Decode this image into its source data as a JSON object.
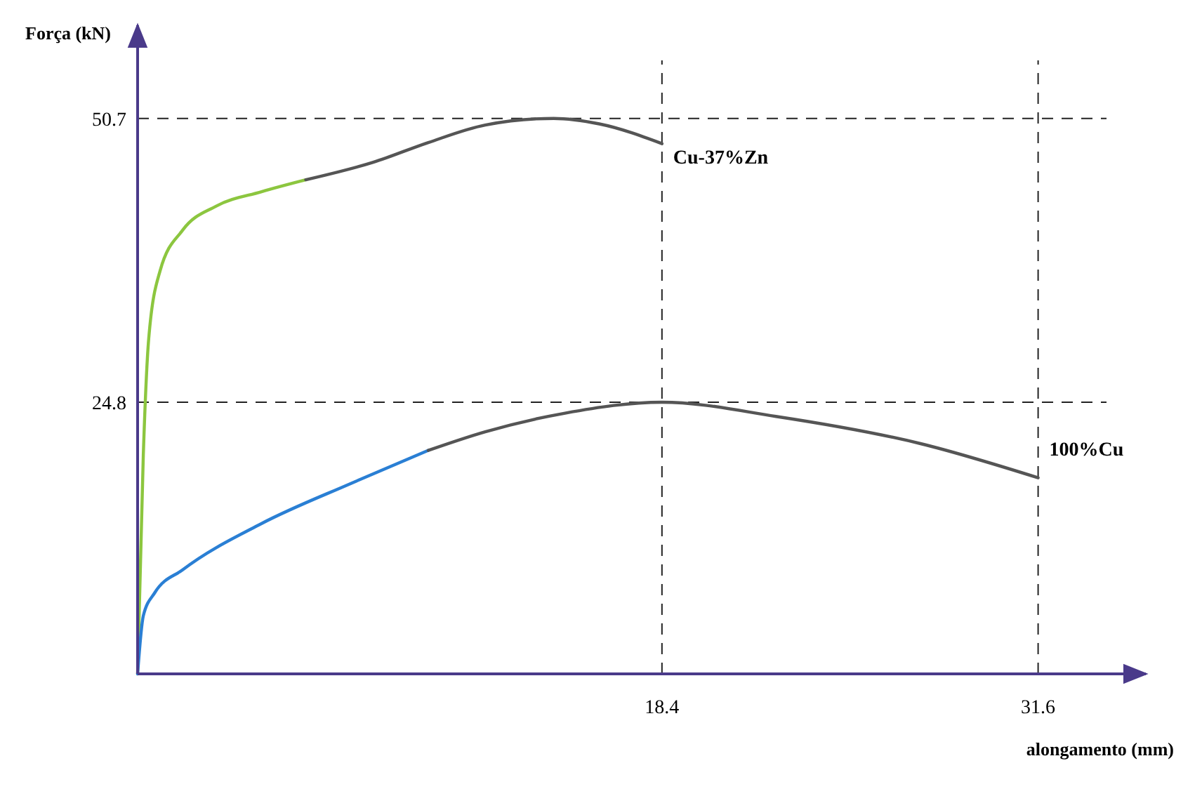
{
  "chart_data": {
    "type": "line",
    "xlabel": "alongamento (mm)",
    "ylabel": "Força (kN)",
    "xlim": [
      0,
      34
    ],
    "ylim": [
      0,
      56
    ],
    "xticks": [
      18.4,
      31.6
    ],
    "yticks": [
      24.8,
      50.7
    ],
    "grid": false,
    "marker": "none",
    "line_style": "solid",
    "series": [
      {
        "color": "#8cc63f",
        "x": [
          0,
          0.2,
          0.39,
          0.79,
          1.58,
          2.76,
          4.33,
          5.9
        ],
        "values": [
          0,
          20.0,
          30.6,
          36.8,
          40.5,
          42.7,
          44.0,
          45.1
        ]
      },
      {
        "name": "Cu-37%Zn",
        "color": "#555555",
        "x": [
          5.9,
          8.27,
          10.2,
          12.2,
          14.6,
          16.2,
          18.4
        ],
        "values": [
          45.1,
          46.7,
          48.5,
          50.1,
          50.7,
          50.2,
          48.4
        ]
      },
      {
        "color": "#2a7fd4",
        "x": [
          0,
          0.2,
          0.6,
          1.58,
          4.33,
          7.5,
          10.2
        ],
        "values": [
          0,
          5.3,
          7.4,
          9.5,
          13.7,
          17.4,
          20.4
        ]
      },
      {
        "name": "100%Cu",
        "color": "#555555",
        "x": [
          10.2,
          12.2,
          15.0,
          18.4,
          22.4,
          27.5,
          31.6
        ],
        "values": [
          20.4,
          22.1,
          23.8,
          24.8,
          23.5,
          21.0,
          17.9
        ]
      }
    ],
    "ref_lines": [
      {
        "axis": "y",
        "value": 50.7,
        "line_style": "dashed"
      },
      {
        "axis": "y",
        "value": 24.8,
        "line_style": "dashed"
      },
      {
        "axis": "x",
        "value": 18.4,
        "line_style": "dashed"
      },
      {
        "axis": "x",
        "value": 31.6,
        "line_style": "dashed"
      }
    ]
  }
}
